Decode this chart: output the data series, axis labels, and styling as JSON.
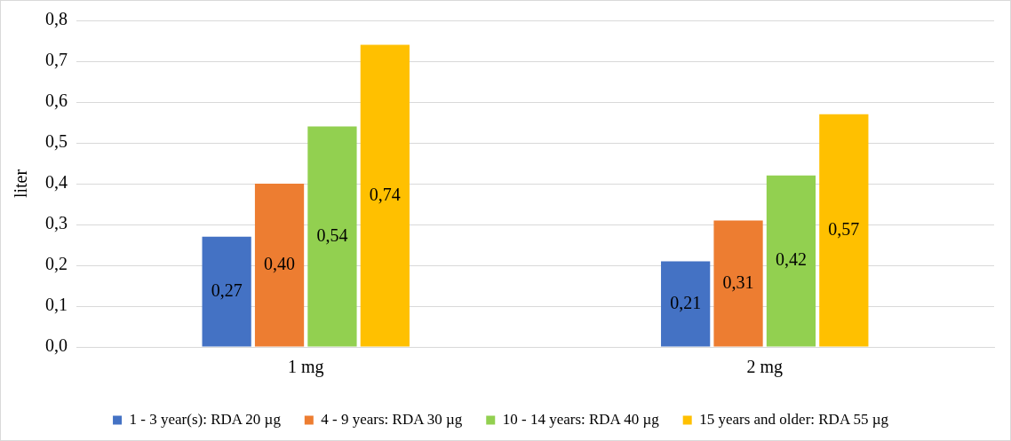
{
  "chart_data": {
    "type": "bar",
    "ylabel": "liter",
    "categories": [
      "1 mg",
      "2 mg"
    ],
    "series": [
      {
        "name": "1 - 3 year(s): RDA 20 µg",
        "color": "#4472c4",
        "values": [
          0.27,
          0.21
        ],
        "value_labels": [
          "0,27",
          "0,21"
        ]
      },
      {
        "name": "4 - 9 years: RDA 30 µg",
        "color": "#ed7d31",
        "values": [
          0.4,
          0.31
        ],
        "value_labels": [
          "0,40",
          "0,31"
        ]
      },
      {
        "name": "10 - 14 years: RDA 40 µg",
        "color": "#92d050",
        "values": [
          0.54,
          0.42
        ],
        "value_labels": [
          "0,54",
          "0,42"
        ]
      },
      {
        "name": "15 years and older: RDA 55 µg",
        "color": "#ffc000",
        "values": [
          0.74,
          0.57
        ],
        "value_labels": [
          "0,74",
          "0,57"
        ]
      }
    ],
    "ylim": [
      0,
      0.8
    ],
    "yticks": [
      {
        "value": 0,
        "label": "0,0"
      },
      {
        "value": 0.1,
        "label": "0,1"
      },
      {
        "value": 0.2,
        "label": "0,2"
      },
      {
        "value": 0.3,
        "label": "0,3"
      },
      {
        "value": 0.4,
        "label": "0,4"
      },
      {
        "value": 0.5,
        "label": "0,5"
      },
      {
        "value": 0.6,
        "label": "0,6"
      },
      {
        "value": 0.7,
        "label": "0,7"
      },
      {
        "value": 0.8,
        "label": "0,8"
      }
    ],
    "grid": "y",
    "legend": "bottom"
  }
}
